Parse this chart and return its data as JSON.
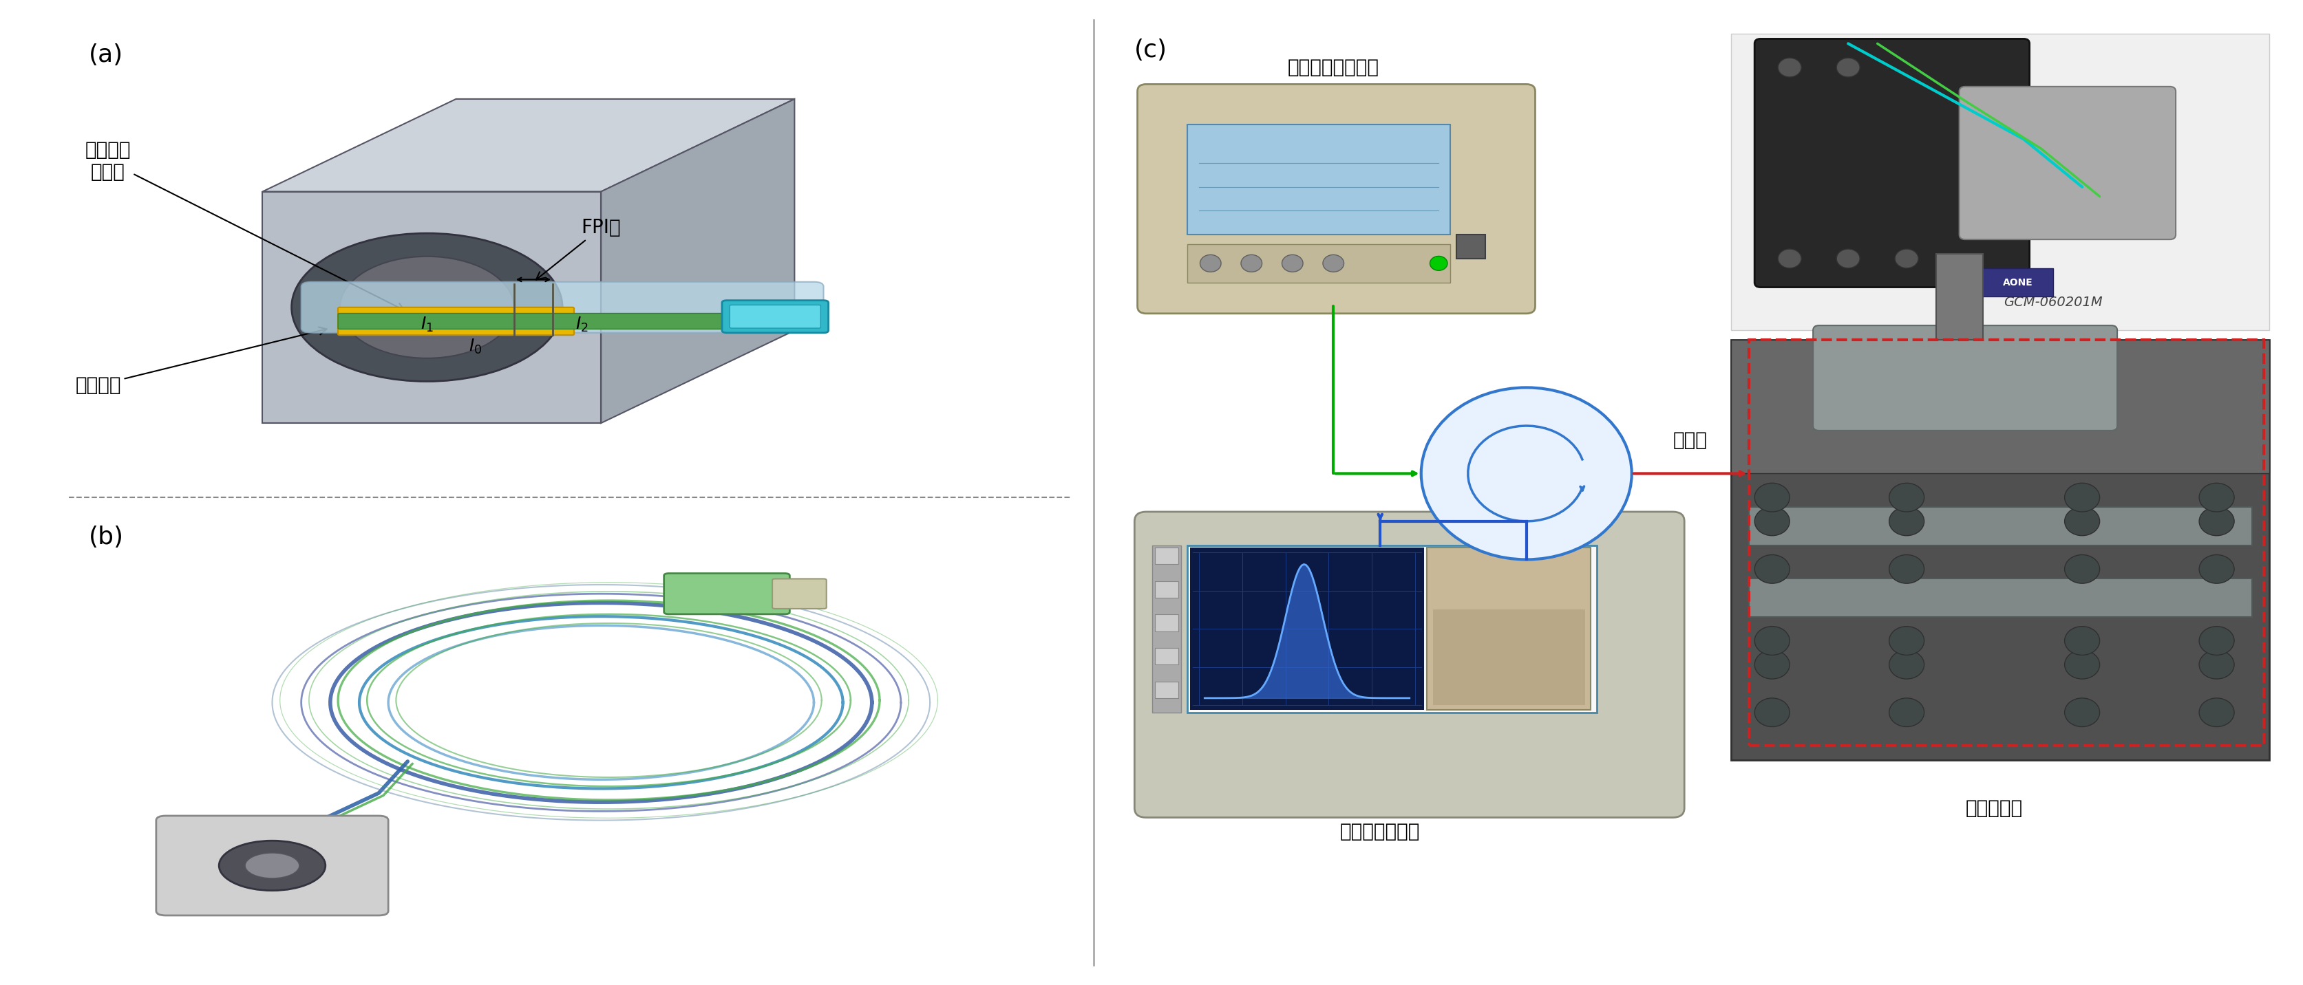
{
  "fig_width": 33.46,
  "fig_height": 14.32,
  "bg_color": "#ffffff",
  "panel_a_label": "(a)",
  "panel_b_label": "(b)",
  "panel_c_label": "(c)",
  "label_fontsize": 26,
  "chinese_fontsize": 20,
  "annotation_fontsize": 18,
  "texts": {
    "fpi_label": "FPI腔",
    "membrane_label": "振膜翼片\n下表面",
    "fiber_end_label": "光纤端面",
    "amplified_source": "放大自发辐射光源",
    "circulator": "环形器",
    "spectrometer": "高分辨率光谱仪",
    "micro_stage": "微位移平台",
    "gcm_label": "GCM-060201M",
    "I0": "$I_0$",
    "I1": "$I_1$",
    "I2": "$I_2$"
  },
  "colors": {
    "fiber_gold": "#d4a017",
    "fiber_green": "#4a9a4a",
    "fiber_cyan": "#00b0c0",
    "arrow_color": "#111111",
    "green_line": "#00aa00",
    "blue_line": "#2255cc",
    "red_dashed": "#cc2222",
    "circle_blue": "#3377cc",
    "divider_color": "#aaaaaa",
    "box_gray": "#b8c0c8",
    "box_light": "#d0d8e0",
    "box_top": "#c8d0d8",
    "hole_dark": "#444444",
    "device_beige": "#d8d0b8",
    "device_edge": "#888870"
  }
}
